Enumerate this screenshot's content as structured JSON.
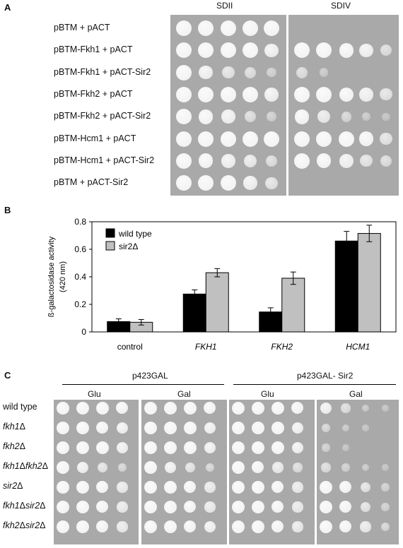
{
  "panelA": {
    "letter": "A",
    "columns": [
      "SDII",
      "SDIV"
    ],
    "rows": [
      "pBTM + pACT",
      "pBTM-Fkh1 + pACT",
      "pBTM-Fkh1 + pACT-Sir2",
      "pBTM-Fkh2 + pACT",
      "pBTM-Fkh2 + pACT-Sir2",
      "pBTM-Hcm1 + pACT",
      "pBTM-Hcm1 + pACT-Sir2",
      "pBTM + pACT-Sir2"
    ],
    "growth": {
      "SDII": [
        [
          1,
          1,
          1,
          1,
          1
        ],
        [
          1,
          1,
          1,
          1,
          0.8
        ],
        [
          1,
          0.8,
          0.6,
          0.5,
          0.3
        ],
        [
          1,
          1,
          1,
          1,
          0.8
        ],
        [
          1,
          0.9,
          0.8,
          0.5,
          0.3
        ],
        [
          1,
          1,
          1,
          1,
          1
        ],
        [
          1,
          0.9,
          0.8,
          0.7,
          0.5
        ],
        [
          1,
          1,
          1,
          0.8,
          0.6
        ]
      ],
      "SDIV": [
        [
          0,
          0,
          0,
          0,
          0
        ],
        [
          1,
          1,
          0.9,
          0.8,
          0.5
        ],
        [
          0.5,
          0.2,
          0,
          0,
          0
        ],
        [
          1,
          1,
          0.9,
          0.8,
          0.6
        ],
        [
          0.9,
          0.7,
          0.4,
          0.2,
          0.1
        ],
        [
          1,
          1,
          1,
          0.9,
          0.6
        ],
        [
          1,
          0.9,
          0.8,
          0.6,
          0.5
        ],
        [
          0,
          0,
          0,
          0,
          0
        ]
      ]
    }
  },
  "panelB": {
    "letter": "B",
    "chart_data": {
      "type": "bar",
      "categories": [
        "control",
        "FKH1",
        "FKH2",
        "HCM1"
      ],
      "series": [
        {
          "name": "wild type",
          "values": [
            0.075,
            0.275,
            0.145,
            0.66
          ],
          "errors": [
            0.02,
            0.03,
            0.03,
            0.07
          ],
          "color": "#000000"
        },
        {
          "name": "sir2Δ",
          "values": [
            0.07,
            0.43,
            0.39,
            0.715
          ],
          "errors": [
            0.02,
            0.03,
            0.045,
            0.06
          ],
          "color": "#c0c0c0"
        }
      ],
      "ylabel_line1": "ß-galactosidase activity",
      "ylabel_line2": "(420 nm)",
      "ylim": [
        0,
        0.8
      ],
      "yticks": [
        "0",
        "0.2",
        "0.4",
        "0.6",
        "0.8"
      ],
      "legend_position": "top-left"
    }
  },
  "panelC": {
    "letter": "C",
    "groups": [
      "p423GAL",
      "p423GAL- Sir2"
    ],
    "subgroups": [
      "Glu",
      "Gal",
      "Glu",
      "Gal"
    ],
    "rows": [
      {
        "a": "wild type",
        "b": "",
        "c": "",
        "d": ""
      },
      {
        "a": "fkh1",
        "b": "Δ",
        "c": "",
        "d": ""
      },
      {
        "a": "fkh2",
        "b": "Δ",
        "c": "",
        "d": ""
      },
      {
        "a": "fkh1",
        "b": "Δ",
        "c": "fkh2",
        "d": "Δ"
      },
      {
        "a": "sir2",
        "b": "Δ",
        "c": "",
        "d": ""
      },
      {
        "a": "fkh1",
        "b": "Δ",
        "c": "sir2",
        "d": "Δ"
      },
      {
        "a": "fkh2",
        "b": "Δ",
        "c": "sir2",
        "d": "Δ"
      }
    ],
    "growth": [
      [
        [
          1,
          1,
          1,
          0.9
        ],
        [
          1,
          1,
          1,
          0.9
        ],
        [
          1,
          1,
          1,
          0.9
        ],
        [
          0.8,
          0.5,
          0.2,
          0.1
        ]
      ],
      [
        [
          1,
          1,
          0.9,
          0.8
        ],
        [
          1,
          1,
          1,
          0.8
        ],
        [
          1,
          1,
          1,
          0.8
        ],
        [
          0.4,
          0.2,
          0.1,
          0
        ]
      ],
      [
        [
          1,
          1,
          1,
          0.8
        ],
        [
          1,
          1,
          1,
          0.8
        ],
        [
          1,
          1,
          1,
          0.8
        ],
        [
          0.3,
          0.1,
          0,
          0
        ]
      ],
      [
        [
          1,
          0.8,
          0.6,
          0.4
        ],
        [
          1,
          0.8,
          0.6,
          0.4
        ],
        [
          1,
          0.9,
          0.7,
          0.5
        ],
        [
          0.5,
          0.3,
          0.2,
          0.1
        ]
      ],
      [
        [
          1,
          1,
          0.9,
          0.7
        ],
        [
          1,
          1,
          0.9,
          0.7
        ],
        [
          1,
          1,
          0.9,
          0.7
        ],
        [
          1,
          0.9,
          0.6,
          0.3
        ]
      ],
      [
        [
          1,
          1,
          0.9,
          0.7
        ],
        [
          1,
          1,
          0.9,
          0.7
        ],
        [
          1,
          1,
          0.9,
          0.7
        ],
        [
          1,
          0.9,
          0.6,
          0.3
        ]
      ],
      [
        [
          1,
          1,
          0.9,
          0.7
        ],
        [
          1,
          1,
          0.9,
          0.8
        ],
        [
          1,
          1,
          0.9,
          0.7
        ],
        [
          1,
          0.9,
          0.7,
          0.4
        ]
      ]
    ]
  }
}
